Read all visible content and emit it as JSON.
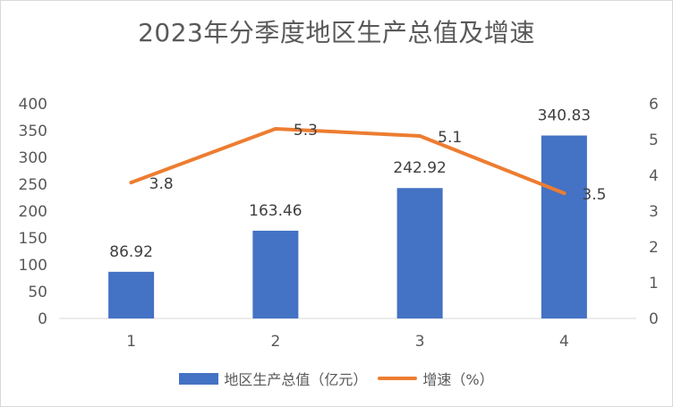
{
  "chart_data": {
    "type": "bar+line",
    "title": "2023年分季度地区生产总值及增速",
    "categories": [
      "1",
      "2",
      "3",
      "4"
    ],
    "series": [
      {
        "name": "地区生产总值（亿元）",
        "type": "bar",
        "axis": "left",
        "color": "#4472c4",
        "values": [
          86.92,
          163.46,
          242.92,
          340.83
        ],
        "labels": [
          "86.92",
          "163.46",
          "242.92",
          "340.83"
        ]
      },
      {
        "name": "增速（%）",
        "type": "line",
        "axis": "right",
        "color": "#ed7d31",
        "values": [
          3.8,
          5.3,
          5.1,
          3.5
        ],
        "labels": [
          "3.8",
          "5.3",
          "5.1",
          "3.5"
        ]
      }
    ],
    "y_left": {
      "min": 0,
      "max": 400,
      "ticks": [
        "0",
        "50",
        "100",
        "150",
        "200",
        "250",
        "300",
        "350",
        "400"
      ]
    },
    "y_right": {
      "min": 0,
      "max": 6,
      "ticks": [
        "0",
        "1",
        "2",
        "3",
        "4",
        "5",
        "6"
      ]
    },
    "grid": false,
    "legend": "bottom"
  }
}
